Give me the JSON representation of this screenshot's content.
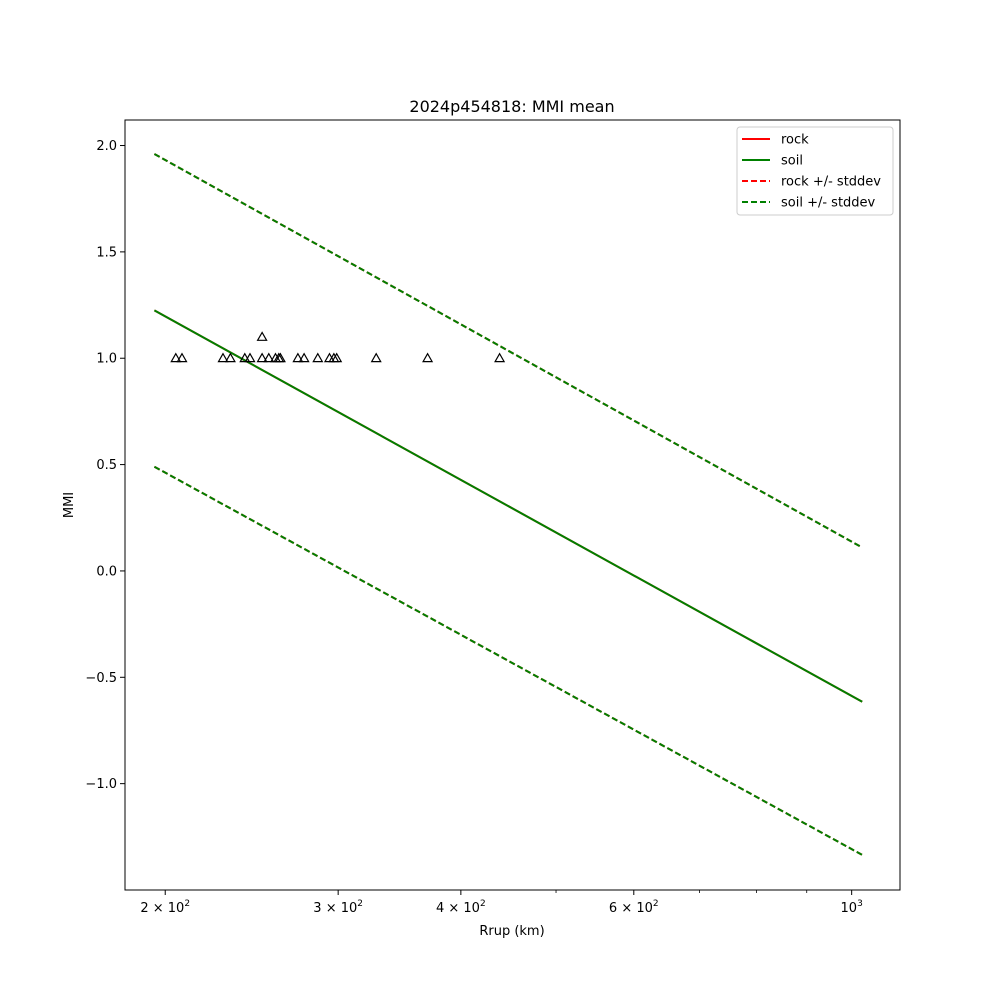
{
  "chart_data": {
    "type": "line",
    "title": "2024p454818: MMI mean",
    "xlabel": "Rrup (km)",
    "ylabel": "MMI",
    "xscale": "log",
    "xlim": [
      182,
      1120
    ],
    "ylim": [
      -1.5,
      2.12
    ],
    "xticks": [
      {
        "value": 200,
        "label": "2 × 10^2",
        "mantissa": "2",
        "exp": "2"
      },
      {
        "value": 300,
        "label": "3 × 10^2",
        "mantissa": "3",
        "exp": "2"
      },
      {
        "value": 400,
        "label": "4 × 10^2",
        "mantissa": "4",
        "exp": "2"
      },
      {
        "value": 600,
        "label": "6 × 10^2",
        "mantissa": "6",
        "exp": "2"
      },
      {
        "value": 1000,
        "label": "10^3",
        "mantissa": "",
        "exp": "3"
      }
    ],
    "xminor": [
      500,
      700,
      800,
      900
    ],
    "yticks": [
      {
        "value": 2.0,
        "label": "2.0"
      },
      {
        "value": 1.5,
        "label": "1.5"
      },
      {
        "value": 1.0,
        "label": "1.0"
      },
      {
        "value": 0.5,
        "label": "0.5"
      },
      {
        "value": 0.0,
        "label": "0.0"
      },
      {
        "value": -0.5,
        "label": "−0.5"
      },
      {
        "value": -1.0,
        "label": "−1.0"
      }
    ],
    "grid": false,
    "legend_position": "top-right",
    "series": [
      {
        "name": "rock",
        "color": "#ff0000",
        "style": "solid",
        "x": [
          195,
          1025
        ],
        "y": [
          1.225,
          -0.615
        ]
      },
      {
        "name": "soil",
        "color": "#008000",
        "style": "solid",
        "x": [
          195,
          1025
        ],
        "y": [
          1.225,
          -0.615
        ]
      },
      {
        "name": "rock +/- stddev",
        "color": "#ff0000",
        "style": "dashed",
        "x": [
          195,
          1025
        ],
        "y": [
          1.96,
          0.11
        ],
        "y2": [
          0.49,
          -1.335
        ]
      },
      {
        "name": "soil +/- stddev",
        "color": "#008000",
        "style": "dashed",
        "x": [
          195,
          1025
        ],
        "y": [
          1.96,
          0.11
        ],
        "y2": [
          0.49,
          -1.335
        ]
      }
    ],
    "observations": {
      "marker": "triangle",
      "color": "#000000",
      "points": [
        {
          "x": 205,
          "y": 1.0
        },
        {
          "x": 208,
          "y": 1.0
        },
        {
          "x": 229,
          "y": 1.0
        },
        {
          "x": 233,
          "y": 1.0
        },
        {
          "x": 241,
          "y": 1.0
        },
        {
          "x": 244,
          "y": 1.0
        },
        {
          "x": 251,
          "y": 1.0
        },
        {
          "x": 251,
          "y": 1.1
        },
        {
          "x": 255,
          "y": 1.0
        },
        {
          "x": 259,
          "y": 1.0
        },
        {
          "x": 261,
          "y": 1.0
        },
        {
          "x": 262,
          "y": 1.0
        },
        {
          "x": 273,
          "y": 1.0
        },
        {
          "x": 277,
          "y": 1.0
        },
        {
          "x": 286,
          "y": 1.0
        },
        {
          "x": 294,
          "y": 1.0
        },
        {
          "x": 297,
          "y": 1.0
        },
        {
          "x": 299,
          "y": 1.0
        },
        {
          "x": 328,
          "y": 1.0
        },
        {
          "x": 370,
          "y": 1.0
        },
        {
          "x": 438,
          "y": 1.0
        }
      ]
    }
  }
}
